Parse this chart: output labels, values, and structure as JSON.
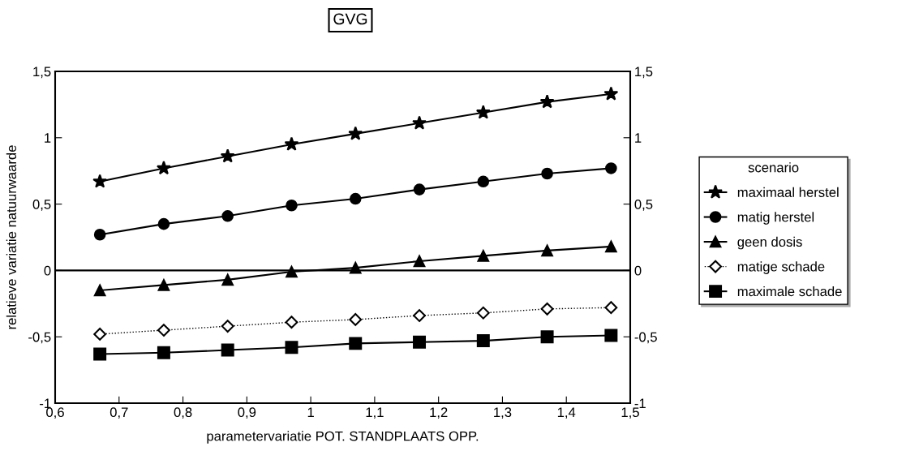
{
  "chart_data": {
    "type": "line",
    "title": "GVG",
    "xlabel": "parametervariatie POT. STANDPLAATS OPP.",
    "ylabel": "relatieve variatie natuurwaarde",
    "legend_title": "scenario",
    "legend": "right",
    "grid": false,
    "x": [
      0.67,
      0.77,
      0.87,
      0.97,
      1.07,
      1.17,
      1.27,
      1.37,
      1.47
    ],
    "xlim": [
      0.6,
      1.5
    ],
    "xticks": [
      {
        "value": 0.6,
        "label": "0,6"
      },
      {
        "value": 0.7,
        "label": "0,7"
      },
      {
        "value": 0.8,
        "label": "0,8"
      },
      {
        "value": 0.9,
        "label": "0,9"
      },
      {
        "value": 1,
        "label": "1"
      },
      {
        "value": 1.1,
        "label": "1,1"
      },
      {
        "value": 1.2,
        "label": "1,2"
      },
      {
        "value": 1.3,
        "label": "1,3"
      },
      {
        "value": 1.4,
        "label": "1,4"
      },
      {
        "value": 1.5,
        "label": "1,5"
      }
    ],
    "ylim": [
      -1,
      1.5
    ],
    "yticks": [
      {
        "value": -1,
        "label": "-1"
      },
      {
        "value": -0.5,
        "label": "-0,5"
      },
      {
        "value": 0,
        "label": "0"
      },
      {
        "value": 0.5,
        "label": "0,5"
      },
      {
        "value": 1,
        "label": "1"
      },
      {
        "value": 1.5,
        "label": "1,5"
      }
    ],
    "y2lim": [
      -1,
      1.5
    ],
    "y2ticks": [
      {
        "value": -1,
        "label": "-1"
      },
      {
        "value": -0.5,
        "label": "-0,5"
      },
      {
        "value": 0,
        "label": "0"
      },
      {
        "value": 0.5,
        "label": "0,5"
      },
      {
        "value": 1,
        "label": "1"
      },
      {
        "value": 1.5,
        "label": "1,5"
      }
    ],
    "ref_lines": [
      {
        "axis": "y",
        "value": 0,
        "color": "#000000",
        "line_style": "solid"
      }
    ],
    "series": [
      {
        "name": "maximaal herstel",
        "color": "#000000",
        "marker": "star",
        "line_style": "solid",
        "values": [
          0.67,
          0.77,
          0.86,
          0.95,
          1.03,
          1.11,
          1.19,
          1.27,
          1.33
        ]
      },
      {
        "name": "matig herstel",
        "color": "#000000",
        "marker": "circle",
        "line_style": "solid",
        "values": [
          0.27,
          0.35,
          0.41,
          0.49,
          0.54,
          0.61,
          0.67,
          0.73,
          0.77
        ]
      },
      {
        "name": "geen dosis",
        "color": "#000000",
        "marker": "triangle",
        "line_style": "solid",
        "values": [
          -0.15,
          -0.11,
          -0.07,
          -0.01,
          0.02,
          0.07,
          0.11,
          0.15,
          0.18
        ]
      },
      {
        "name": "matige schade",
        "color": "#000000",
        "marker": "diamond",
        "line_style": "dotted",
        "values": [
          -0.48,
          -0.45,
          -0.42,
          -0.39,
          -0.37,
          -0.34,
          -0.32,
          -0.29,
          -0.28
        ]
      },
      {
        "name": "maximale schade",
        "color": "#000000",
        "marker": "square",
        "line_style": "solid",
        "values": [
          -0.63,
          -0.62,
          -0.6,
          -0.58,
          -0.55,
          -0.54,
          -0.53,
          -0.5,
          -0.49
        ]
      }
    ]
  }
}
